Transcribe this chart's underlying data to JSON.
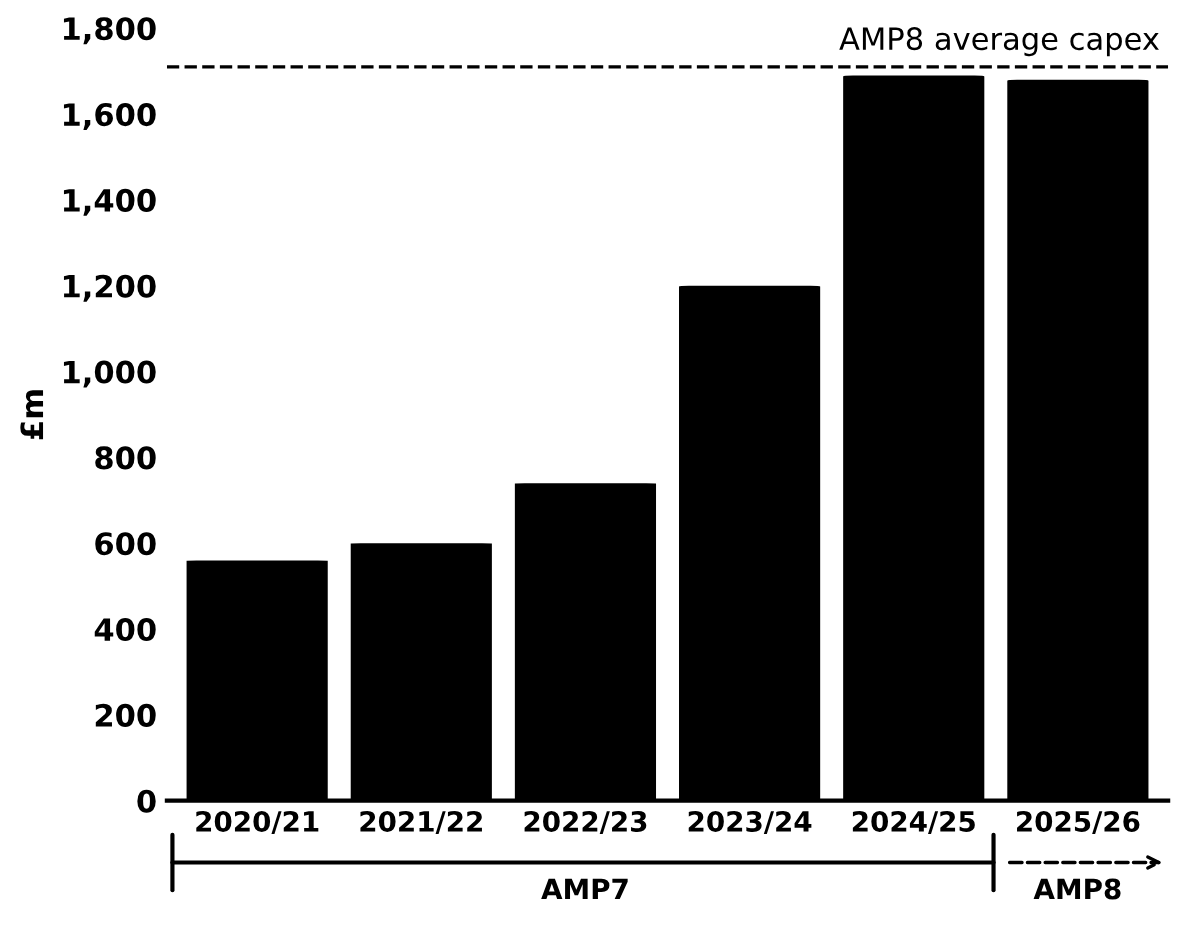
{
  "chart_data": {
    "type": "bar",
    "categories": [
      "2020/21",
      "2021/22",
      "2022/23",
      "2023/24",
      "2024/25",
      "2025/26"
    ],
    "values": [
      560,
      600,
      740,
      1200,
      1690,
      1680
    ],
    "color": "#000000",
    "ylabel": "£m",
    "ylim": [
      0,
      1800
    ],
    "yticks": [
      {
        "value": 0,
        "label": "0"
      },
      {
        "value": 200,
        "label": "200"
      },
      {
        "value": 400,
        "label": "400"
      },
      {
        "value": 600,
        "label": "600"
      },
      {
        "value": 800,
        "label": "800"
      },
      {
        "value": 1000,
        "label": "1,000"
      },
      {
        "value": 1200,
        "label": "1,200"
      },
      {
        "value": 1400,
        "label": "1,400"
      },
      {
        "value": 1600,
        "label": "1,600"
      },
      {
        "value": 1800,
        "label": "1,800"
      }
    ],
    "ref_lines": [
      {
        "axis": "y",
        "value": 1710,
        "label": "AMP8 average capex",
        "color": "#000000",
        "line_style": "dashed"
      }
    ],
    "annotations": [
      "AMP7",
      "AMP8"
    ],
    "grid": false,
    "legend": false
  }
}
